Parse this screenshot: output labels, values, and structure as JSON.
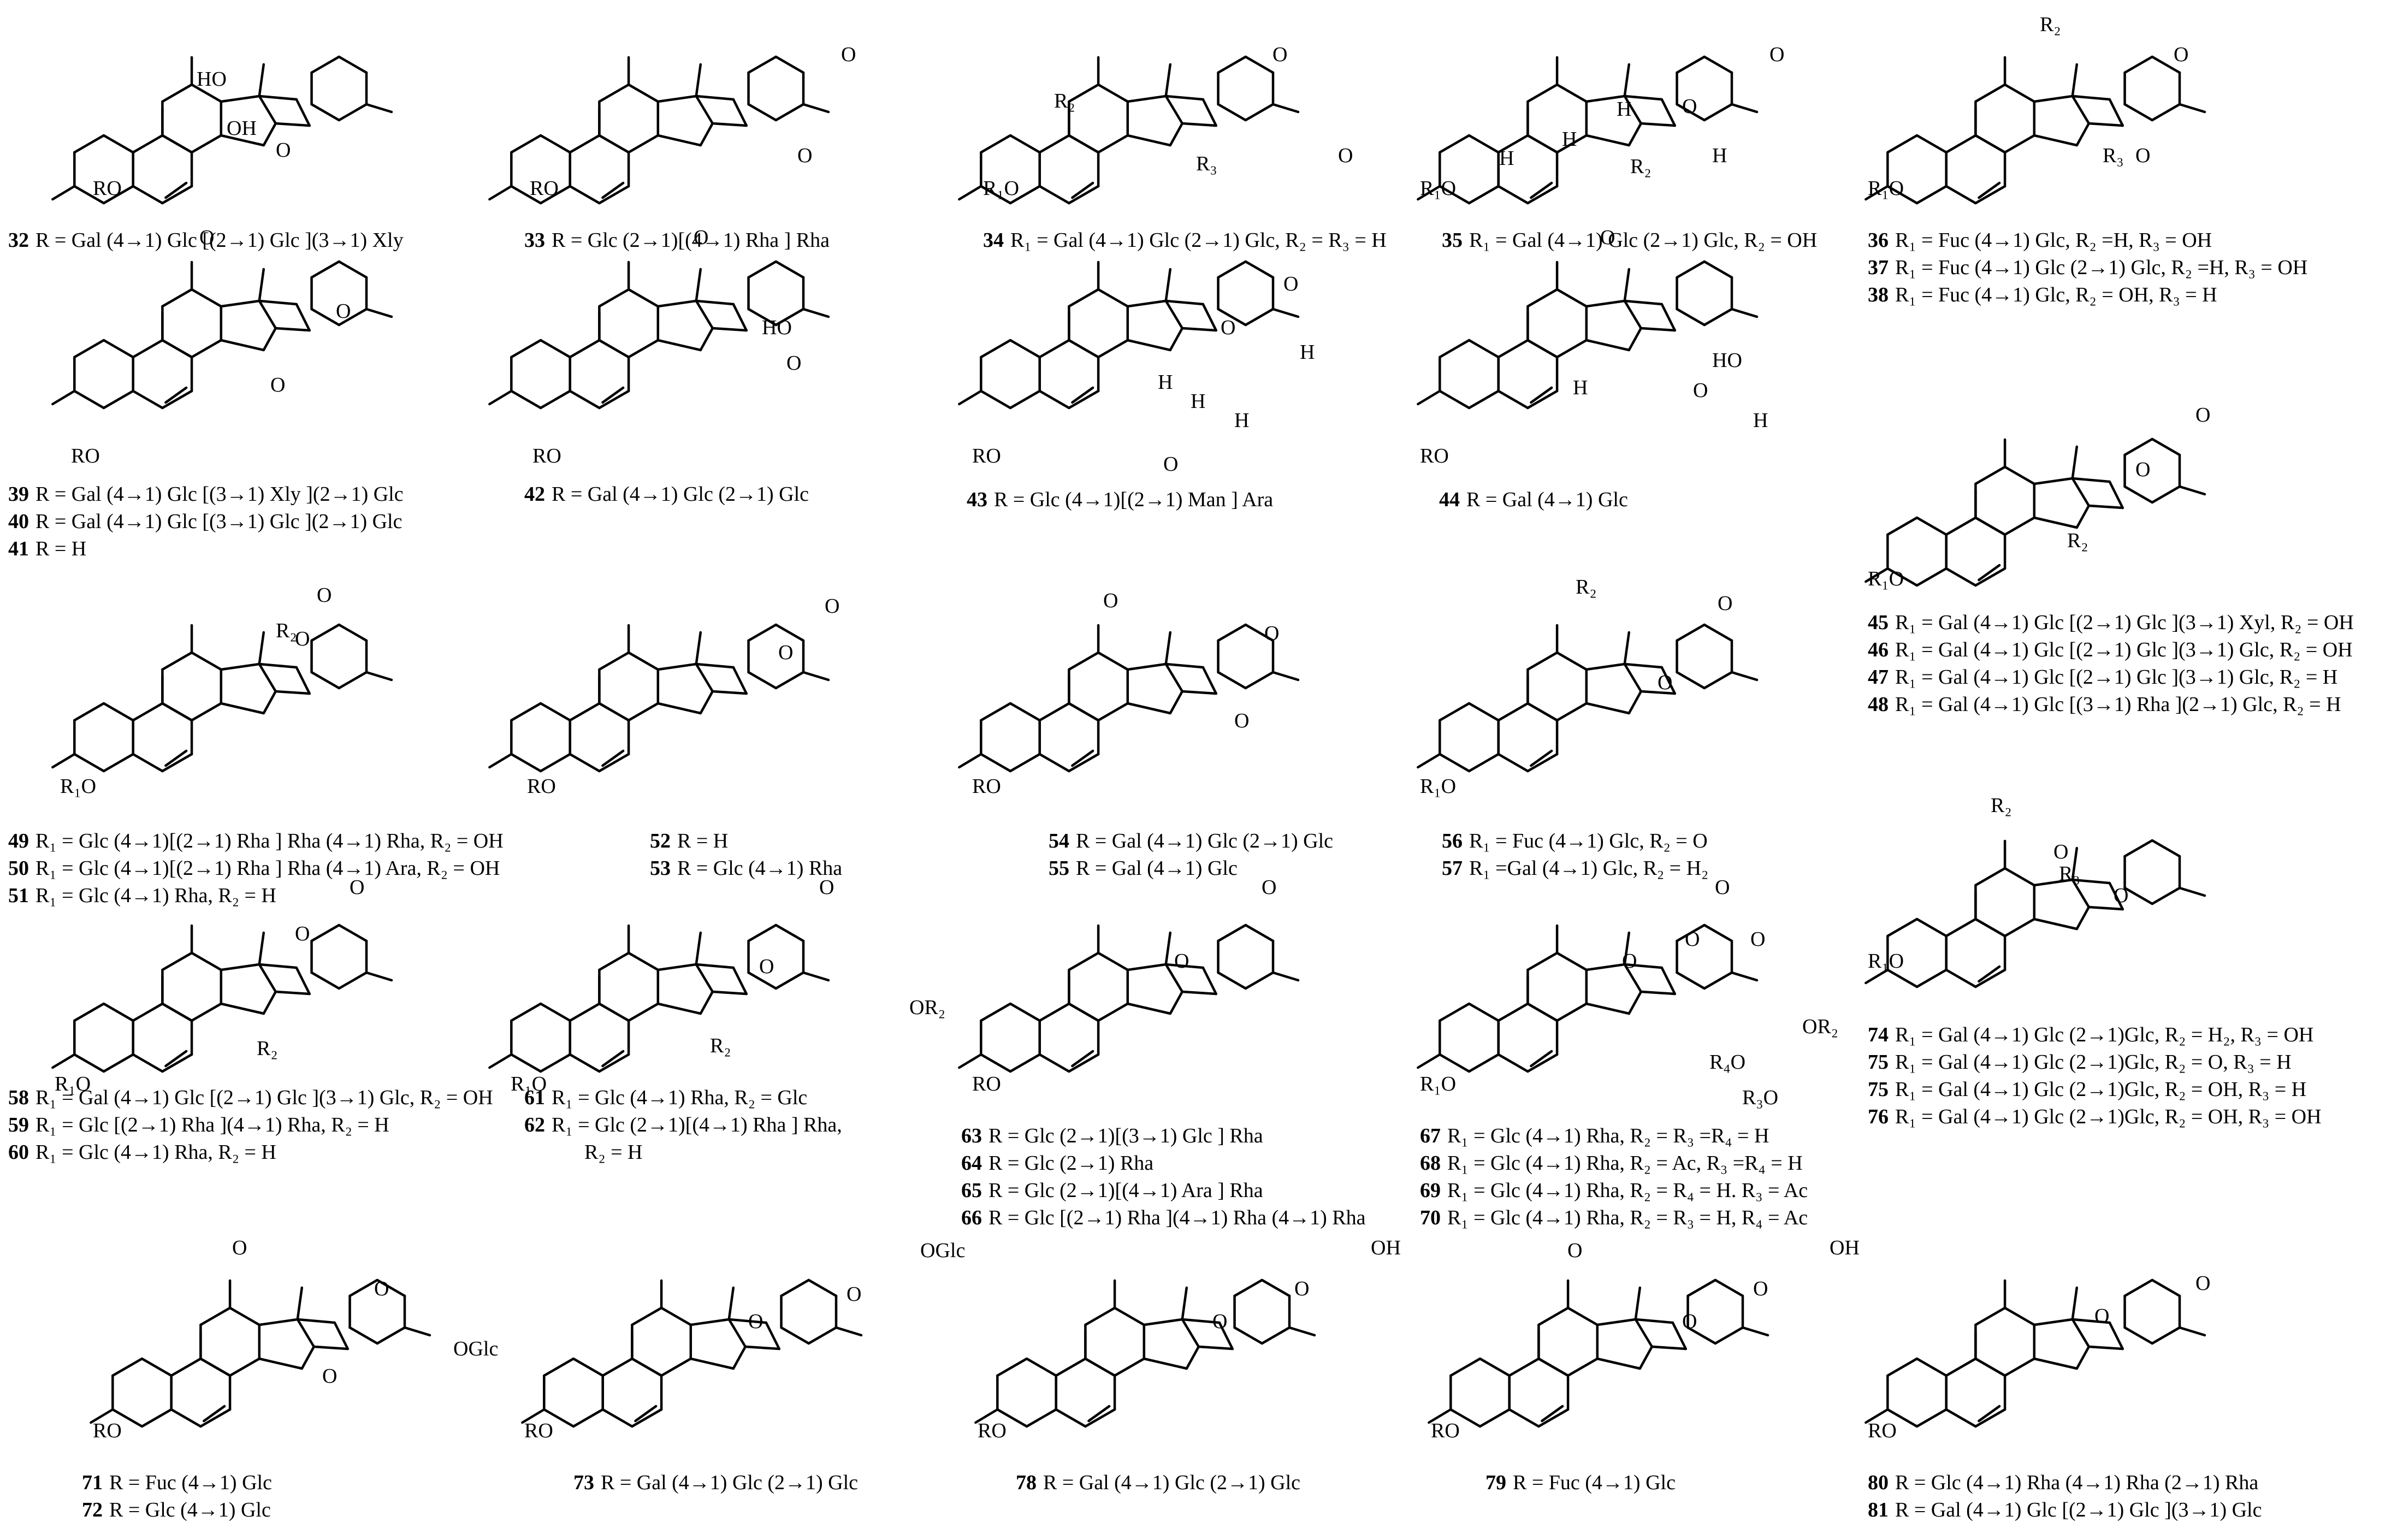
{
  "figure": {
    "compounds": [
      {
        "id": "c32",
        "substituent_labels": [
          "RO",
          "HO",
          "OH",
          "O"
        ],
        "captions": [
          {
            "num": "32",
            "text": "R = Gal (4→1) Glc [(2→1) Glc ](3→1) Xly"
          }
        ]
      },
      {
        "id": "c33",
        "substituent_labels": [
          "RO",
          "O",
          "O"
        ],
        "captions": [
          {
            "num": "33",
            "text": "R = Glc (2→1)[(4→1) Rha ] Rha"
          }
        ]
      },
      {
        "id": "c34",
        "substituent_labels": [
          "R₁O",
          "R₂",
          "R₃",
          "O",
          "O"
        ],
        "captions": [
          {
            "num": "34",
            "text": "R₁ = Gal (4→1) Glc (2→1) Glc, R₂ = R₃ = H"
          }
        ]
      },
      {
        "id": "c35",
        "substituent_labels": [
          "R₁O",
          "H",
          "H",
          "H",
          "R₂",
          "H",
          "O",
          "O"
        ],
        "captions": [
          {
            "num": "35",
            "text": "R₁ = Gal (4→1) Glc (2→1) Glc, R₂ = OH"
          }
        ]
      },
      {
        "id": "c36",
        "substituent_labels": [
          "R₁O",
          "R₂",
          "R₃",
          "O",
          "O"
        ],
        "captions": [
          {
            "num": "36",
            "text": "R₁ = Fuc (4→1) Glc, R₂ =H, R₃ = OH"
          },
          {
            "num": "37",
            "text": "R₁ = Fuc (4→1) Glc (2→1) Glc, R₂ =H, R₃ = OH"
          },
          {
            "num": "38",
            "text": "R₁ = Fuc (4→1) Glc, R₂ = OH, R₃ = H"
          }
        ]
      },
      {
        "id": "c39",
        "substituent_labels": [
          "RO",
          "O",
          "O",
          "O"
        ],
        "captions": [
          {
            "num": "39",
            "text": "R = Gal (4→1) Glc [(3→1) Xly ](2→1) Glc"
          },
          {
            "num": "40",
            "text": "R = Gal (4→1) Glc [(3→1) Glc ](2→1) Glc"
          },
          {
            "num": "41",
            "text": "R = H"
          }
        ]
      },
      {
        "id": "c42",
        "substituent_labels": [
          "RO",
          "O",
          "HO",
          "O"
        ],
        "captions": [
          {
            "num": "42",
            "text": "R = Gal (4→1) Glc (2→1) Glc"
          }
        ]
      },
      {
        "id": "c43",
        "substituent_labels": [
          "RO",
          "O",
          "H",
          "H",
          "H",
          "H",
          "O",
          "O"
        ],
        "captions": [
          {
            "num": "43",
            "text": "R = Glc (4→1)[(2→1) Man ] Ara"
          }
        ]
      },
      {
        "id": "c44",
        "substituent_labels": [
          "RO",
          "O",
          "H",
          "HO",
          "O",
          "H"
        ],
        "captions": [
          {
            "num": "44",
            "text": "R = Gal (4→1) Glc"
          }
        ]
      },
      {
        "id": "c45",
        "substituent_labels": [
          "R₁O",
          "R₂",
          "O",
          "O"
        ],
        "captions": [
          {
            "num": "45",
            "text": "R₁ = Gal (4→1) Glc [(2→1) Glc ](3→1) Xyl, R₂ = OH"
          },
          {
            "num": "46",
            "text": "R₁ = Gal (4→1) Glc [(2→1) Glc ](3→1) Glc, R₂ = OH"
          },
          {
            "num": "47",
            "text": "R₁ = Gal (4→1) Glc [(2→1) Glc ](3→1) Glc, R₂ = H"
          },
          {
            "num": "48",
            "text": "R₁ = Gal (4→1) Glc [(3→1) Rha ](2→1) Glc, R₂ = H"
          }
        ]
      },
      {
        "id": "c49",
        "substituent_labels": [
          "R₁O",
          "R₂",
          "O",
          "O"
        ],
        "captions": [
          {
            "num": "49",
            "text": "R₁ = Glc (4→1)[(2→1) Rha ] Rha (4→1) Rha, R₂ = OH"
          },
          {
            "num": "50",
            "text": "R₁ = Glc (4→1)[(2→1) Rha ] Rha (4→1) Ara, R₂ = OH"
          },
          {
            "num": "51",
            "text": "R₁ = Glc (4→1) Rha, R₂ = H"
          }
        ]
      },
      {
        "id": "c52",
        "substituent_labels": [
          "RO",
          "O",
          "O"
        ],
        "captions": [
          {
            "num": "52",
            "text": "R = H"
          },
          {
            "num": "53",
            "text": "R = Glc (4→1) Rha"
          }
        ]
      },
      {
        "id": "c54",
        "substituent_labels": [
          "RO",
          "O",
          "O",
          "O"
        ],
        "captions": [
          {
            "num": "54",
            "text": "R = Gal (4→1) Glc (2→1) Glc"
          },
          {
            "num": "55",
            "text": "R = Gal (4→1) Glc"
          }
        ]
      },
      {
        "id": "c56",
        "substituent_labels": [
          "R₁O",
          "R₂",
          "O",
          "O"
        ],
        "captions": [
          {
            "num": "56",
            "text": "R₁ = Fuc (4→1) Glc, R₂ = O"
          },
          {
            "num": "57",
            "text": "R₁ =Gal (4→1) Glc, R₂ = H₂"
          }
        ]
      },
      {
        "id": "c58",
        "substituent_labels": [
          "R₁O",
          "R₂",
          "O",
          "O"
        ],
        "captions": [
          {
            "num": "58",
            "text": "R₁ = Gal (4→1) Glc [(2→1) Glc ](3→1) Glc, R₂ = OH"
          },
          {
            "num": "59",
            "text": "R₁ = Glc [(2→1) Rha ](4→1) Rha, R₂ = H"
          },
          {
            "num": "60",
            "text": "R₁ = Glc (4→1) Rha, R₂ = H"
          }
        ]
      },
      {
        "id": "c61",
        "substituent_labels": [
          "R₁O",
          "R₂",
          "OR₂",
          "O",
          "O"
        ],
        "captions": [
          {
            "num": "61",
            "text": "R₁ = Glc (4→1) Rha, R₂ = Glc"
          },
          {
            "num": "62",
            "text": "R₁ = Glc (2→1)[(4→1) Rha ] Rha,"
          },
          {
            "num": "",
            "text": "R₂ = H"
          }
        ]
      },
      {
        "id": "c63",
        "substituent_labels": [
          "RO",
          "O",
          "O"
        ],
        "captions": [
          {
            "num": "63",
            "text": "R = Glc (2→1)[(3→1) Glc ] Rha"
          },
          {
            "num": "64",
            "text": "R = Glc (2→1) Rha"
          },
          {
            "num": "65",
            "text": "R = Glc (2→1)[(4→1) Ara ] Rha"
          },
          {
            "num": "66",
            "text": "R = Glc [(2→1) Rha ](4→1) Rha (4→1) Rha"
          }
        ]
      },
      {
        "id": "c67",
        "substituent_labels": [
          "R₁O",
          "O",
          "O",
          "O",
          "OR₂",
          "R₄O",
          "R₃O",
          "O"
        ],
        "captions": [
          {
            "num": "67",
            "text": "R₁ = Glc (4→1) Rha, R₂ = R₃ =R₄ = H"
          },
          {
            "num": "68",
            "text": "R₁ = Glc (4→1) Rha, R₂ = Ac, R₃ =R₄ = H"
          },
          {
            "num": "69",
            "text": "R₁ = Glc (4→1) Rha, R₂ = R₄ = H. R₃ = Ac"
          },
          {
            "num": "70",
            "text": "R₁ = Glc (4→1) Rha, R₂ = R₃ = H, R₄ = Ac"
          }
        ]
      },
      {
        "id": "c74",
        "substituent_labels": [
          "R₁O",
          "R₂",
          "R₃",
          "O",
          "O"
        ],
        "captions": [
          {
            "num": "74",
            "text": "R₁ = Gal (4→1) Glc (2→1)Glc, R₂ = H₂, R₃ = OH"
          },
          {
            "num": "75",
            "text": "R₁ = Gal (4→1) Glc (2→1)Glc, R₂ = O, R₃ = H"
          },
          {
            "num": "75",
            "text": "R₁ = Gal (4→1) Glc (2→1)Glc, R₂ = OH, R₃ = H"
          },
          {
            "num": "76",
            "text": "R₁ = Gal (4→1) Glc (2→1)Glc, R₂ = OH, R₃ = OH"
          }
        ]
      },
      {
        "id": "c71",
        "substituent_labels": [
          "RO",
          "O",
          "OGlc",
          "O",
          "O"
        ],
        "captions": [
          {
            "num": "71",
            "text": "R = Fuc (4→1) Glc"
          },
          {
            "num": "72",
            "text": "R = Glc (4→1) Glc"
          }
        ]
      },
      {
        "id": "c73",
        "substituent_labels": [
          "RO",
          "OGlc",
          "O",
          "O"
        ],
        "captions": [
          {
            "num": "73",
            "text": "R = Gal (4→1) Glc (2→1) Glc"
          }
        ]
      },
      {
        "id": "c78",
        "substituent_labels": [
          "RO",
          "OH",
          "O",
          "O"
        ],
        "captions": [
          {
            "num": "78",
            "text": "R = Gal (4→1) Glc (2→1) Glc"
          }
        ]
      },
      {
        "id": "c79",
        "substituent_labels": [
          "RO",
          "O",
          "OH",
          "O",
          "O"
        ],
        "captions": [
          {
            "num": "79",
            "text": "R = Fuc (4→1) Glc"
          }
        ]
      },
      {
        "id": "c80",
        "substituent_labels": [
          "RO",
          "O",
          "O"
        ],
        "captions": [
          {
            "num": "80",
            "text": "R = Glc (4→1) Rha (4→1) Rha (2→1) Rha"
          },
          {
            "num": "81",
            "text": "R = Gal (4→1) Glc [(2→1) Glc ](3→1) Glc"
          }
        ]
      }
    ]
  }
}
